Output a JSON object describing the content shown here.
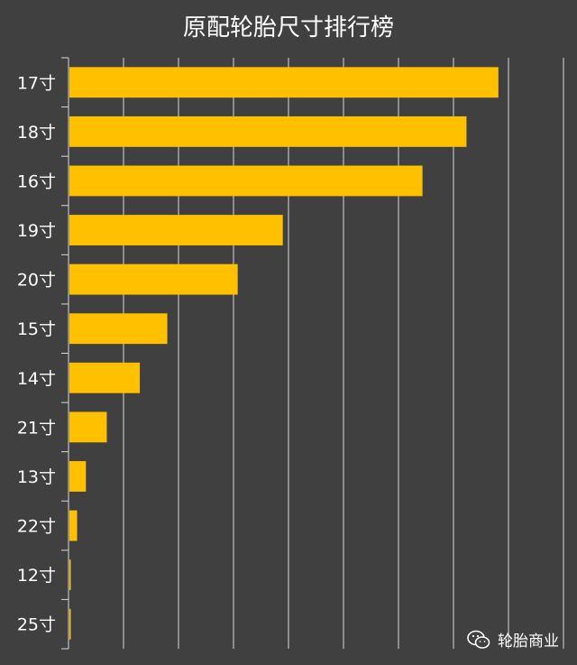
{
  "chart_data": {
    "type": "bar",
    "orientation": "horizontal",
    "title": "原配轮胎尺寸排行榜",
    "categories": [
      "17寸",
      "18寸",
      "16寸",
      "19寸",
      "20寸",
      "15寸",
      "14寸",
      "21寸",
      "13寸",
      "22寸",
      "12寸",
      "25寸"
    ],
    "values": [
      39.0,
      36.1,
      32.1,
      19.4,
      15.3,
      8.9,
      6.4,
      3.4,
      1.5,
      0.7,
      0.1,
      0.1
    ],
    "xlim": [
      0,
      45
    ],
    "grid_step": 5,
    "xlabel": "",
    "ylabel": "",
    "bar_color": "#FFC000",
    "grid": true,
    "show_value_labels": false
  },
  "colors": {
    "background": "#404040",
    "bar": "#FFC000",
    "grid": "#d9d9d9",
    "text": "#ffffff"
  },
  "watermark": {
    "icon": "wechat-icon",
    "text": "轮胎商业"
  }
}
